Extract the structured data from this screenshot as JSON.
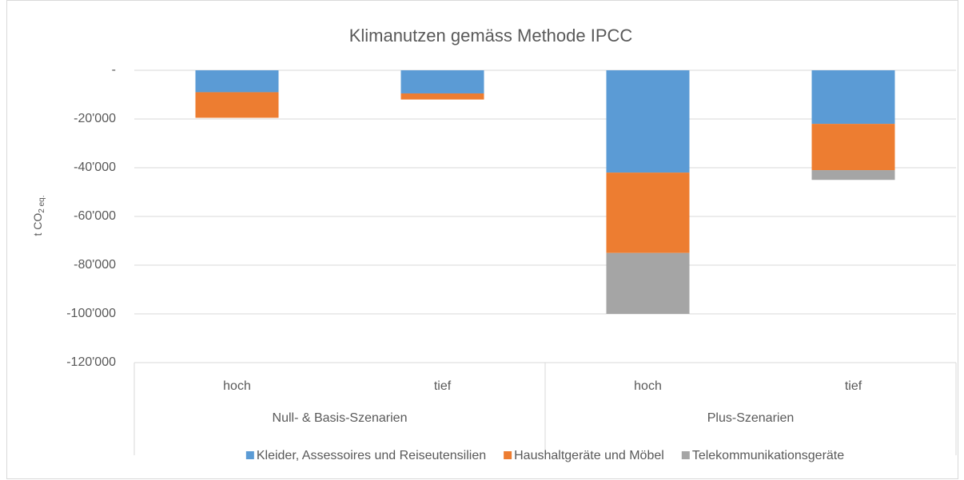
{
  "chart_data": {
    "type": "stacked_bar",
    "title": "Klimanutzen gemäss Methode IPCC",
    "y_label": {
      "text": "t CO",
      "subscript": "2 eq."
    },
    "groups": [
      {
        "name": "Null- & Basis-Szenarien",
        "categories": [
          "hoch",
          "tief"
        ]
      },
      {
        "name": "Plus-Szenarien",
        "categories": [
          "hoch",
          "tief"
        ]
      }
    ],
    "series": [
      {
        "name": "Kleider, Assessoires und Reiseutensilien",
        "color": "#5b9bd5",
        "values": [
          -9000,
          -9500,
          -42000,
          -22000
        ]
      },
      {
        "name": "Haushaltgeräte und Möbel",
        "color": "#ed7d31",
        "values": [
          -10500,
          -2500,
          -33000,
          -19000
        ]
      },
      {
        "name": "Telekommunikationsgeräte",
        "color": "#a5a5a5",
        "values": [
          0,
          0,
          -25000,
          -4000
        ]
      }
    ],
    "ylim": [
      -120000,
      0
    ],
    "yticks": [
      {
        "value": 0,
        "label": "-"
      },
      {
        "value": -20000,
        "label": "-20'000"
      },
      {
        "value": -40000,
        "label": "-40'000"
      },
      {
        "value": -60000,
        "label": "-60'000"
      },
      {
        "value": -80000,
        "label": "-80'000"
      },
      {
        "value": -100000,
        "label": "-100'000"
      },
      {
        "value": -120000,
        "label": "-120'000"
      }
    ],
    "grid": true,
    "legend": "bottom"
  }
}
